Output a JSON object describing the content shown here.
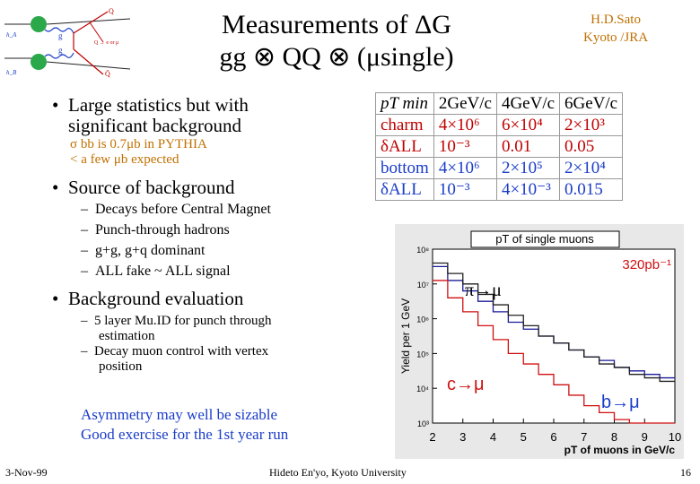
{
  "slide": {
    "title_line1": "Measurements of ΔG",
    "title_line2": "gg ⊗ QQ ⊗ (μsingle)",
    "author_line1": "H.D.Sato",
    "author_line2": "Kyoto /JRA"
  },
  "diagram": {
    "beam_a": "h_A",
    "beam_b": "h_B",
    "g_top": "g",
    "g_bottom": "g",
    "q_label": "Q",
    "qbar_label": "Q̄",
    "decay_label": "Q → e or μ",
    "qbar_bottom": "Q̄"
  },
  "bullets": {
    "b1_line1": "Large statistics  but with",
    "b1_line2": "significant background",
    "b1_sub1": "σ bb is 0.7μb in PYTHIA",
    "b1_sub2": "< a few μb expected",
    "b2": "Source of background",
    "b2_items": [
      "Decays before Central Magnet",
      "Punch-through hadrons",
      "g+g, g+q dominant",
      "ALL fake ~ ALL signal"
    ],
    "b3": "Background evaluation",
    "b3_items": [
      "5 layer Mu.ID for punch through",
      "estimation",
      "Decay muon control with vertex",
      "position"
    ],
    "conclusion_line1": "Asymmetry may well be sizable",
    "conclusion_line2": "Good exercise for the 1st year run"
  },
  "table": {
    "header": [
      "pT min",
      "2GeV/c",
      "4GeV/c",
      "6GeV/c"
    ],
    "rows": [
      [
        "charm",
        "4×10⁶",
        "6×10⁴",
        "2×10³"
      ],
      [
        "δALL",
        "10⁻³",
        "0.01",
        "0.05"
      ],
      [
        "bottom",
        "4×10⁶",
        "2×10⁵",
        "2×10⁴"
      ],
      [
        "δALL",
        "10⁻³",
        "4×10⁻³",
        "0.015"
      ]
    ]
  },
  "chart_data": {
    "type": "line",
    "title": "pT of single muons",
    "xlabel": "pT of muons in GeV/c",
    "ylabel": "Yield per 1 GeV",
    "annotation": "320pb⁻¹",
    "x_ticks": [
      "2",
      "3",
      "4",
      "5",
      "6",
      "7",
      "8",
      "9",
      "10"
    ],
    "y_ticks": [
      "10⁸",
      "10⁷",
      "10⁶",
      "10⁵",
      "10⁴",
      "10³"
    ],
    "xlim": [
      2,
      10
    ],
    "ylim_log10": [
      3,
      8
    ],
    "series": [
      {
        "name": "π→μ",
        "color": "#1a1a9a",
        "x": [
          2,
          2.5,
          3,
          3.5,
          4,
          4.5,
          5,
          5.5,
          6,
          6.5,
          7,
          7.5,
          8,
          8.5,
          9,
          9.5
        ],
        "log10y": [
          7.5,
          7.1,
          6.8,
          6.5,
          6.2,
          5.9,
          5.7,
          5.5,
          5.3,
          5.1,
          4.9,
          4.8,
          4.6,
          4.5,
          4.4,
          4.3
        ]
      },
      {
        "name": "c→μ",
        "color": "#d01010",
        "x": [
          2,
          2.5,
          3,
          3.5,
          4,
          4.5,
          5,
          5.5,
          6,
          6.5,
          7,
          7.5,
          8,
          8.5,
          9,
          9.5
        ],
        "log10y": [
          7.1,
          6.6,
          6.2,
          5.8,
          5.4,
          5.0,
          4.7,
          4.4,
          4.1,
          3.8,
          3.5,
          3.3,
          3.1,
          2.9,
          2.7,
          2.5
        ]
      },
      {
        "name": "b→μ",
        "color": "#202020",
        "x": [
          2,
          2.5,
          3,
          3.5,
          4,
          4.5,
          5,
          5.5,
          6,
          6.5,
          7,
          7.5,
          8,
          8.5,
          9,
          9.5
        ],
        "log10y": [
          7.6,
          7.3,
          7.0,
          6.7,
          6.4,
          6.1,
          5.8,
          5.5,
          5.3,
          5.1,
          4.9,
          4.7,
          4.6,
          4.4,
          4.3,
          4.2
        ]
      }
    ],
    "labels": {
      "pi": "π→μ",
      "c": "c→μ",
      "b": "b→μ"
    }
  },
  "footer": {
    "date": "3-Nov-99",
    "institution": "Hideto En'yo, Kyoto University",
    "page": "16"
  }
}
